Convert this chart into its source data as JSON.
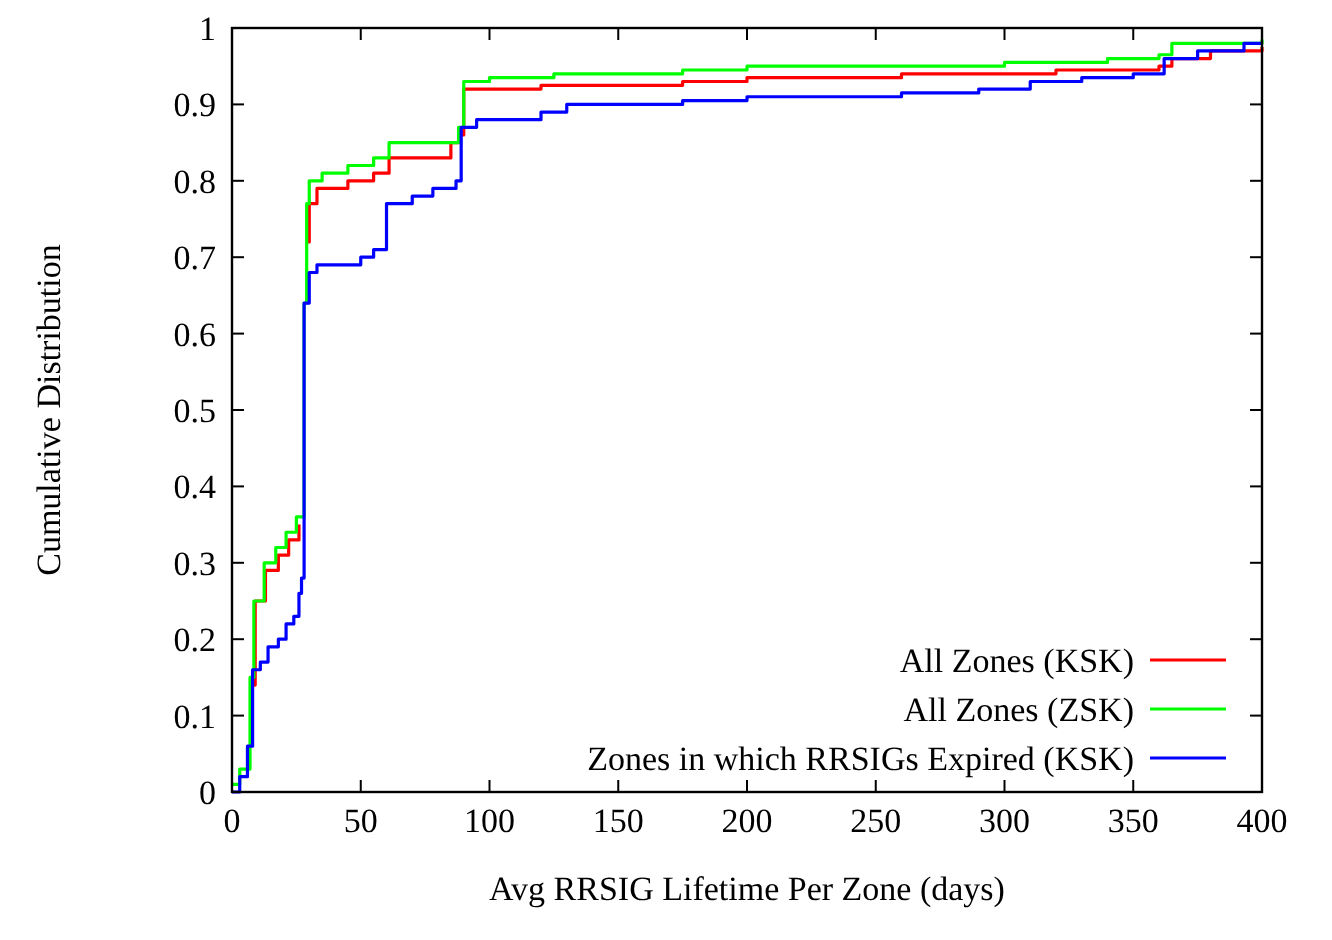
{
  "chart_data": {
    "type": "step",
    "xlabel": "Avg RRSIG Lifetime Per Zone (days)",
    "ylabel": "Cumulative Distribution",
    "xlim": [
      0,
      400
    ],
    "xticks": [
      0,
      50,
      100,
      150,
      200,
      250,
      300,
      350,
      400
    ],
    "ylim": [
      0,
      1
    ],
    "yticks": [
      0,
      0.1,
      0.2,
      0.3,
      0.4,
      0.5,
      0.6,
      0.7,
      0.8,
      0.9,
      1
    ],
    "grid": false,
    "legend": "bottom right",
    "line_style": "solid",
    "marker": "none",
    "series": [
      {
        "name": "All Zones (KSK)",
        "color": "#ff0000",
        "x": [
          7,
          9,
          13,
          18,
          22,
          26,
          28,
          29,
          30,
          33,
          45,
          55,
          61,
          85,
          88,
          90,
          120,
          175,
          200,
          260,
          320,
          360,
          365,
          380,
          400
        ],
        "values": [
          0.14,
          0.25,
          0.29,
          0.31,
          0.33,
          0.35,
          null,
          0.72,
          0.77,
          0.79,
          0.8,
          0.81,
          0.83,
          0.85,
          0.86,
          0.92,
          0.925,
          0.93,
          0.935,
          0.94,
          0.945,
          0.95,
          0.96,
          0.97,
          0.975
        ]
      },
      {
        "name": "All Zones (ZSK)",
        "color": "#00ff00",
        "x": [
          0,
          3,
          7,
          8.5,
          12.5,
          17,
          21,
          25,
          28,
          29,
          30,
          35,
          45,
          55,
          61,
          88,
          90,
          100,
          125,
          175,
          200,
          300,
          340,
          360,
          365,
          400
        ],
        "values": [
          0.01,
          0.03,
          0.15,
          0.25,
          0.3,
          0.32,
          0.34,
          0.36,
          0.64,
          0.77,
          0.8,
          0.81,
          0.82,
          0.83,
          0.85,
          0.87,
          0.93,
          0.935,
          0.94,
          0.945,
          0.95,
          0.955,
          0.96,
          0.965,
          0.98,
          0.985
        ]
      },
      {
        "name": "Zones in which RRSIGs Expired (KSK)",
        "color": "#0000ff",
        "x": [
          0,
          3,
          6,
          8,
          11,
          14,
          18,
          21,
          24,
          26,
          27,
          28,
          30,
          33,
          50,
          55,
          60,
          70,
          78,
          87,
          89,
          95,
          120,
          130,
          175,
          200,
          260,
          290,
          310,
          330,
          350,
          362,
          375,
          393,
          400
        ],
        "values": [
          0,
          0.02,
          0.06,
          0.16,
          0.17,
          0.19,
          0.2,
          0.22,
          0.23,
          0.26,
          0.28,
          0.64,
          0.68,
          0.69,
          0.7,
          0.71,
          0.77,
          0.78,
          0.79,
          0.8,
          0.87,
          0.88,
          0.89,
          0.9,
          0.905,
          0.91,
          0.915,
          0.92,
          0.93,
          0.935,
          0.94,
          0.96,
          0.97,
          0.98,
          0.98
        ]
      }
    ]
  }
}
